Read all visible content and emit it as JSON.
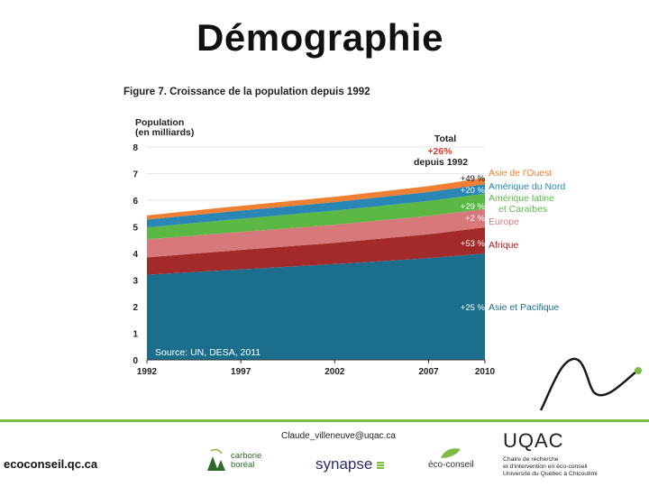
{
  "slide": {
    "title": "Démographie"
  },
  "figure": {
    "title": "Figure 7. Croissance de la population depuis 1992"
  },
  "chart_data": {
    "type": "area",
    "stacked": true,
    "ylabel": "Population\n(en milliards)",
    "ylim": [
      0,
      8
    ],
    "yticks": [
      0,
      1,
      2,
      3,
      4,
      5,
      6,
      7,
      8
    ],
    "xlim": [
      1992,
      2010
    ],
    "xticks": [
      1992,
      1997,
      2002,
      2007,
      2010
    ],
    "source": "Source: UN, DESA, 2011",
    "total_header": {
      "label": "Total\ndepuis 1992",
      "value": "+26%",
      "color": "#e0392b"
    },
    "series": [
      {
        "name": "Asie et Pacifique",
        "color": "#1b6f8c",
        "label_color": "#1b6f8c",
        "change": "+25 %",
        "x": [
          1992,
          1997,
          2002,
          2007,
          2010
        ],
        "values": [
          3.2,
          3.4,
          3.6,
          3.82,
          4.0
        ]
      },
      {
        "name": "Afrique",
        "color": "#a32a2a",
        "label_color": "#b01c1c",
        "change": "+53 %",
        "x": [
          1992,
          1997,
          2002,
          2007,
          2010
        ],
        "values": [
          0.65,
          0.73,
          0.8,
          0.9,
          0.98
        ]
      },
      {
        "name": "Europe",
        "color": "#d7797a",
        "label_color": "#d7797a",
        "change": "+2 %",
        "x": [
          1992,
          1997,
          2002,
          2007,
          2010
        ],
        "values": [
          0.68,
          0.68,
          0.68,
          0.69,
          0.69
        ]
      },
      {
        "name": "Amérique latine\net Caraïbes",
        "color": "#5bb845",
        "label_color": "#5bb845",
        "change": "+29 %",
        "x": [
          1992,
          1997,
          2002,
          2007,
          2010
        ],
        "values": [
          0.45,
          0.49,
          0.53,
          0.56,
          0.58
        ]
      },
      {
        "name": "Amérique du Nord",
        "color": "#2a87b5",
        "label_color": "#2a87b5",
        "change": "+20 %",
        "x": [
          1992,
          1997,
          2002,
          2007,
          2010
        ],
        "values": [
          0.29,
          0.31,
          0.32,
          0.34,
          0.35
        ]
      },
      {
        "name": "Asie de l'Ouest",
        "color": "#ef7f32",
        "label_color": "#ef7f32",
        "change": "+49 %",
        "x": [
          1992,
          1997,
          2002,
          2007,
          2010
        ],
        "values": [
          0.16,
          0.18,
          0.2,
          0.22,
          0.24
        ]
      }
    ]
  },
  "footer": {
    "email": "Claude_villeneuve@uqac.ca",
    "site": "ecoconseil.qc.ca",
    "logos": {
      "carbone": "carbone\nboréal",
      "synapse": "synapse",
      "eco": "éco-conseil",
      "uqac_name": "UQAC",
      "uqac_sub": "Chaire de recherche\net d'intervention en éco-conseil\nUniversité du Québec à Chicoutimi"
    }
  },
  "colors": {
    "accent_green": "#7dbb42",
    "grid": "#e6e6e6"
  }
}
